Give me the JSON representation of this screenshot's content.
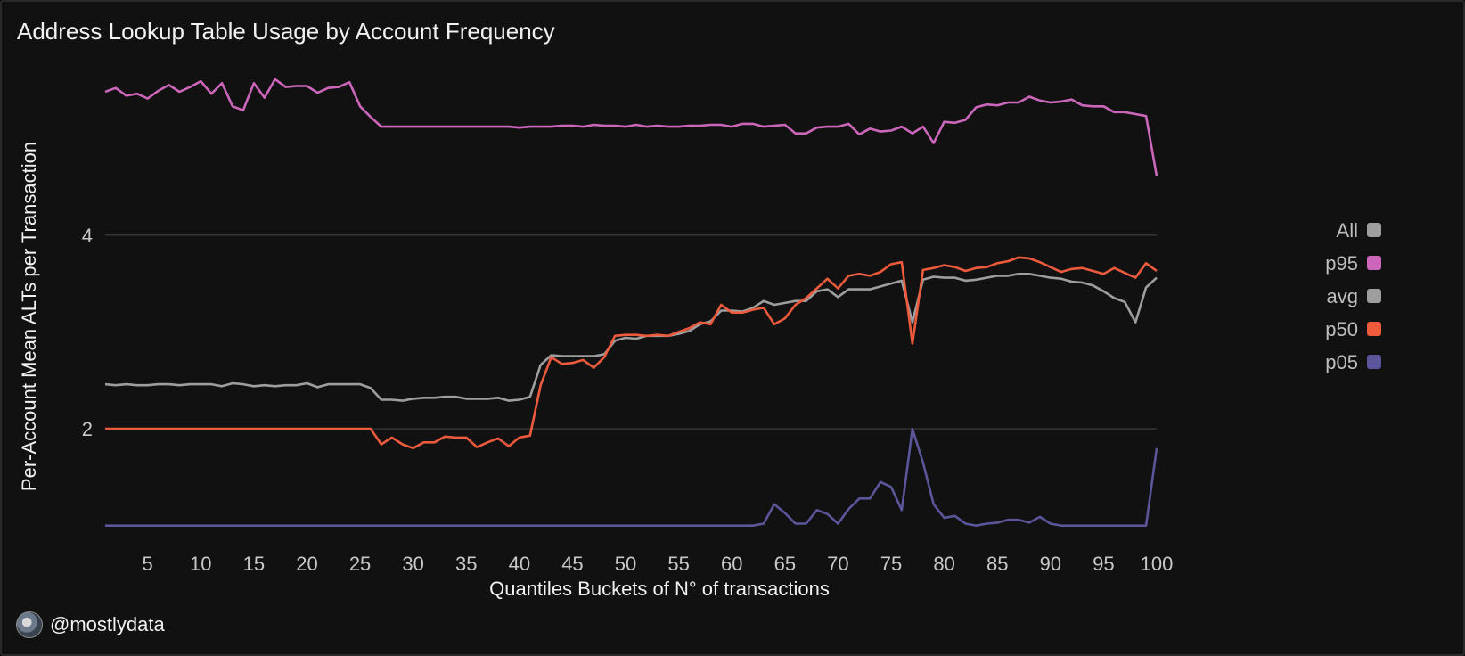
{
  "chart_data": {
    "type": "line",
    "title": "Address Lookup Table Usage by Account Frequency",
    "xlabel": "Quantiles Buckets of N° of transactions",
    "ylabel": "Per-Account Mean ALTs per Transaction",
    "xlim": [
      1,
      100
    ],
    "ylim": [
      0.85,
      5.6
    ],
    "x_ticks": [
      5,
      10,
      15,
      20,
      25,
      30,
      35,
      40,
      45,
      50,
      55,
      60,
      65,
      70,
      75,
      80,
      85,
      90,
      95,
      100
    ],
    "y_ticks": [
      2,
      4
    ],
    "grid": "horizontal",
    "legend_position": "right",
    "legend": [
      {
        "label": "All",
        "color": "#9e9e9e"
      },
      {
        "label": "p95",
        "color": "#cc66bb"
      },
      {
        "label": "avg",
        "color": "#9e9e9e"
      },
      {
        "label": "p50",
        "color": "#ee5a3c"
      },
      {
        "label": "p05",
        "color": "#5b5599"
      }
    ],
    "series": [
      {
        "name": "p95",
        "color": "#cc66bb",
        "values": [
          5.48,
          5.52,
          5.44,
          5.46,
          5.41,
          5.49,
          5.55,
          5.48,
          5.53,
          5.59,
          5.46,
          5.57,
          5.33,
          5.29,
          5.57,
          5.42,
          5.61,
          5.53,
          5.54,
          5.54,
          5.47,
          5.52,
          5.53,
          5.58,
          5.33,
          5.22,
          5.12,
          5.12,
          5.12,
          5.12,
          5.12,
          5.12,
          5.12,
          5.12,
          5.12,
          5.12,
          5.12,
          5.12,
          5.12,
          5.11,
          5.12,
          5.12,
          5.12,
          5.13,
          5.13,
          5.12,
          5.14,
          5.13,
          5.13,
          5.12,
          5.14,
          5.12,
          5.13,
          5.12,
          5.12,
          5.13,
          5.13,
          5.14,
          5.14,
          5.12,
          5.15,
          5.15,
          5.12,
          5.13,
          5.14,
          5.05,
          5.05,
          5.11,
          5.12,
          5.12,
          5.15,
          5.04,
          5.1,
          5.07,
          5.08,
          5.12,
          5.05,
          5.12,
          4.95,
          5.17,
          5.16,
          5.19,
          5.32,
          5.35,
          5.34,
          5.37,
          5.37,
          5.43,
          5.39,
          5.37,
          5.38,
          5.4,
          5.34,
          5.33,
          5.33,
          5.27,
          5.27,
          5.25,
          5.23,
          4.61
        ]
      },
      {
        "name": "avg",
        "color": "#9e9e9e",
        "values": [
          2.46,
          2.45,
          2.46,
          2.45,
          2.45,
          2.46,
          2.46,
          2.45,
          2.46,
          2.46,
          2.46,
          2.44,
          2.47,
          2.46,
          2.44,
          2.45,
          2.44,
          2.45,
          2.45,
          2.47,
          2.43,
          2.46,
          2.46,
          2.46,
          2.46,
          2.42,
          2.3,
          2.3,
          2.29,
          2.31,
          2.32,
          2.32,
          2.33,
          2.33,
          2.31,
          2.31,
          2.31,
          2.32,
          2.29,
          2.3,
          2.33,
          2.66,
          2.76,
          2.75,
          2.75,
          2.75,
          2.75,
          2.77,
          2.91,
          2.94,
          2.93,
          2.96,
          2.96,
          2.96,
          2.98,
          3.01,
          3.08,
          3.11,
          3.22,
          3.22,
          3.21,
          3.25,
          3.32,
          3.28,
          3.3,
          3.32,
          3.32,
          3.42,
          3.44,
          3.36,
          3.44,
          3.44,
          3.44,
          3.47,
          3.5,
          3.53,
          3.1,
          3.54,
          3.57,
          3.56,
          3.56,
          3.53,
          3.54,
          3.56,
          3.58,
          3.58,
          3.6,
          3.6,
          3.58,
          3.56,
          3.55,
          3.52,
          3.51,
          3.48,
          3.42,
          3.35,
          3.31,
          3.1,
          3.46,
          3.56
        ]
      },
      {
        "name": "p50",
        "color": "#ee5a3c",
        "values": [
          2.0,
          2.0,
          2.0,
          2.0,
          2.0,
          2.0,
          2.0,
          2.0,
          2.0,
          2.0,
          2.0,
          2.0,
          2.0,
          2.0,
          2.0,
          2.0,
          2.0,
          2.0,
          2.0,
          2.0,
          2.0,
          2.0,
          2.0,
          2.0,
          2.0,
          2.0,
          1.84,
          1.91,
          1.84,
          1.8,
          1.86,
          1.86,
          1.92,
          1.91,
          1.91,
          1.81,
          1.86,
          1.9,
          1.82,
          1.91,
          1.93,
          2.45,
          2.74,
          2.67,
          2.68,
          2.71,
          2.63,
          2.74,
          2.96,
          2.97,
          2.97,
          2.96,
          2.97,
          2.96,
          3.0,
          3.04,
          3.1,
          3.08,
          3.28,
          3.2,
          3.2,
          3.23,
          3.25,
          3.08,
          3.14,
          3.28,
          3.35,
          3.45,
          3.55,
          3.45,
          3.58,
          3.6,
          3.58,
          3.62,
          3.7,
          3.72,
          2.88,
          3.64,
          3.66,
          3.69,
          3.67,
          3.63,
          3.66,
          3.67,
          3.71,
          3.73,
          3.77,
          3.76,
          3.72,
          3.67,
          3.62,
          3.65,
          3.66,
          3.63,
          3.6,
          3.66,
          3.61,
          3.56,
          3.71,
          3.63
        ]
      },
      {
        "name": "p05",
        "color": "#5b5599",
        "values": [
          1.0,
          1.0,
          1.0,
          1.0,
          1.0,
          1.0,
          1.0,
          1.0,
          1.0,
          1.0,
          1.0,
          1.0,
          1.0,
          1.0,
          1.0,
          1.0,
          1.0,
          1.0,
          1.0,
          1.0,
          1.0,
          1.0,
          1.0,
          1.0,
          1.0,
          1.0,
          1.0,
          1.0,
          1.0,
          1.0,
          1.0,
          1.0,
          1.0,
          1.0,
          1.0,
          1.0,
          1.0,
          1.0,
          1.0,
          1.0,
          1.0,
          1.0,
          1.0,
          1.0,
          1.0,
          1.0,
          1.0,
          1.0,
          1.0,
          1.0,
          1.0,
          1.0,
          1.0,
          1.0,
          1.0,
          1.0,
          1.0,
          1.0,
          1.0,
          1.0,
          1.0,
          1.0,
          1.02,
          1.22,
          1.13,
          1.02,
          1.02,
          1.16,
          1.12,
          1.02,
          1.17,
          1.28,
          1.28,
          1.45,
          1.4,
          1.16,
          2.0,
          1.65,
          1.22,
          1.08,
          1.1,
          1.02,
          1.0,
          1.02,
          1.03,
          1.06,
          1.06,
          1.03,
          1.09,
          1.02,
          1.0,
          1.0,
          1.0,
          1.0,
          1.0,
          1.0,
          1.0,
          1.0,
          1.0,
          1.8
        ]
      }
    ]
  },
  "credit": {
    "handle": "@mostlydata"
  }
}
